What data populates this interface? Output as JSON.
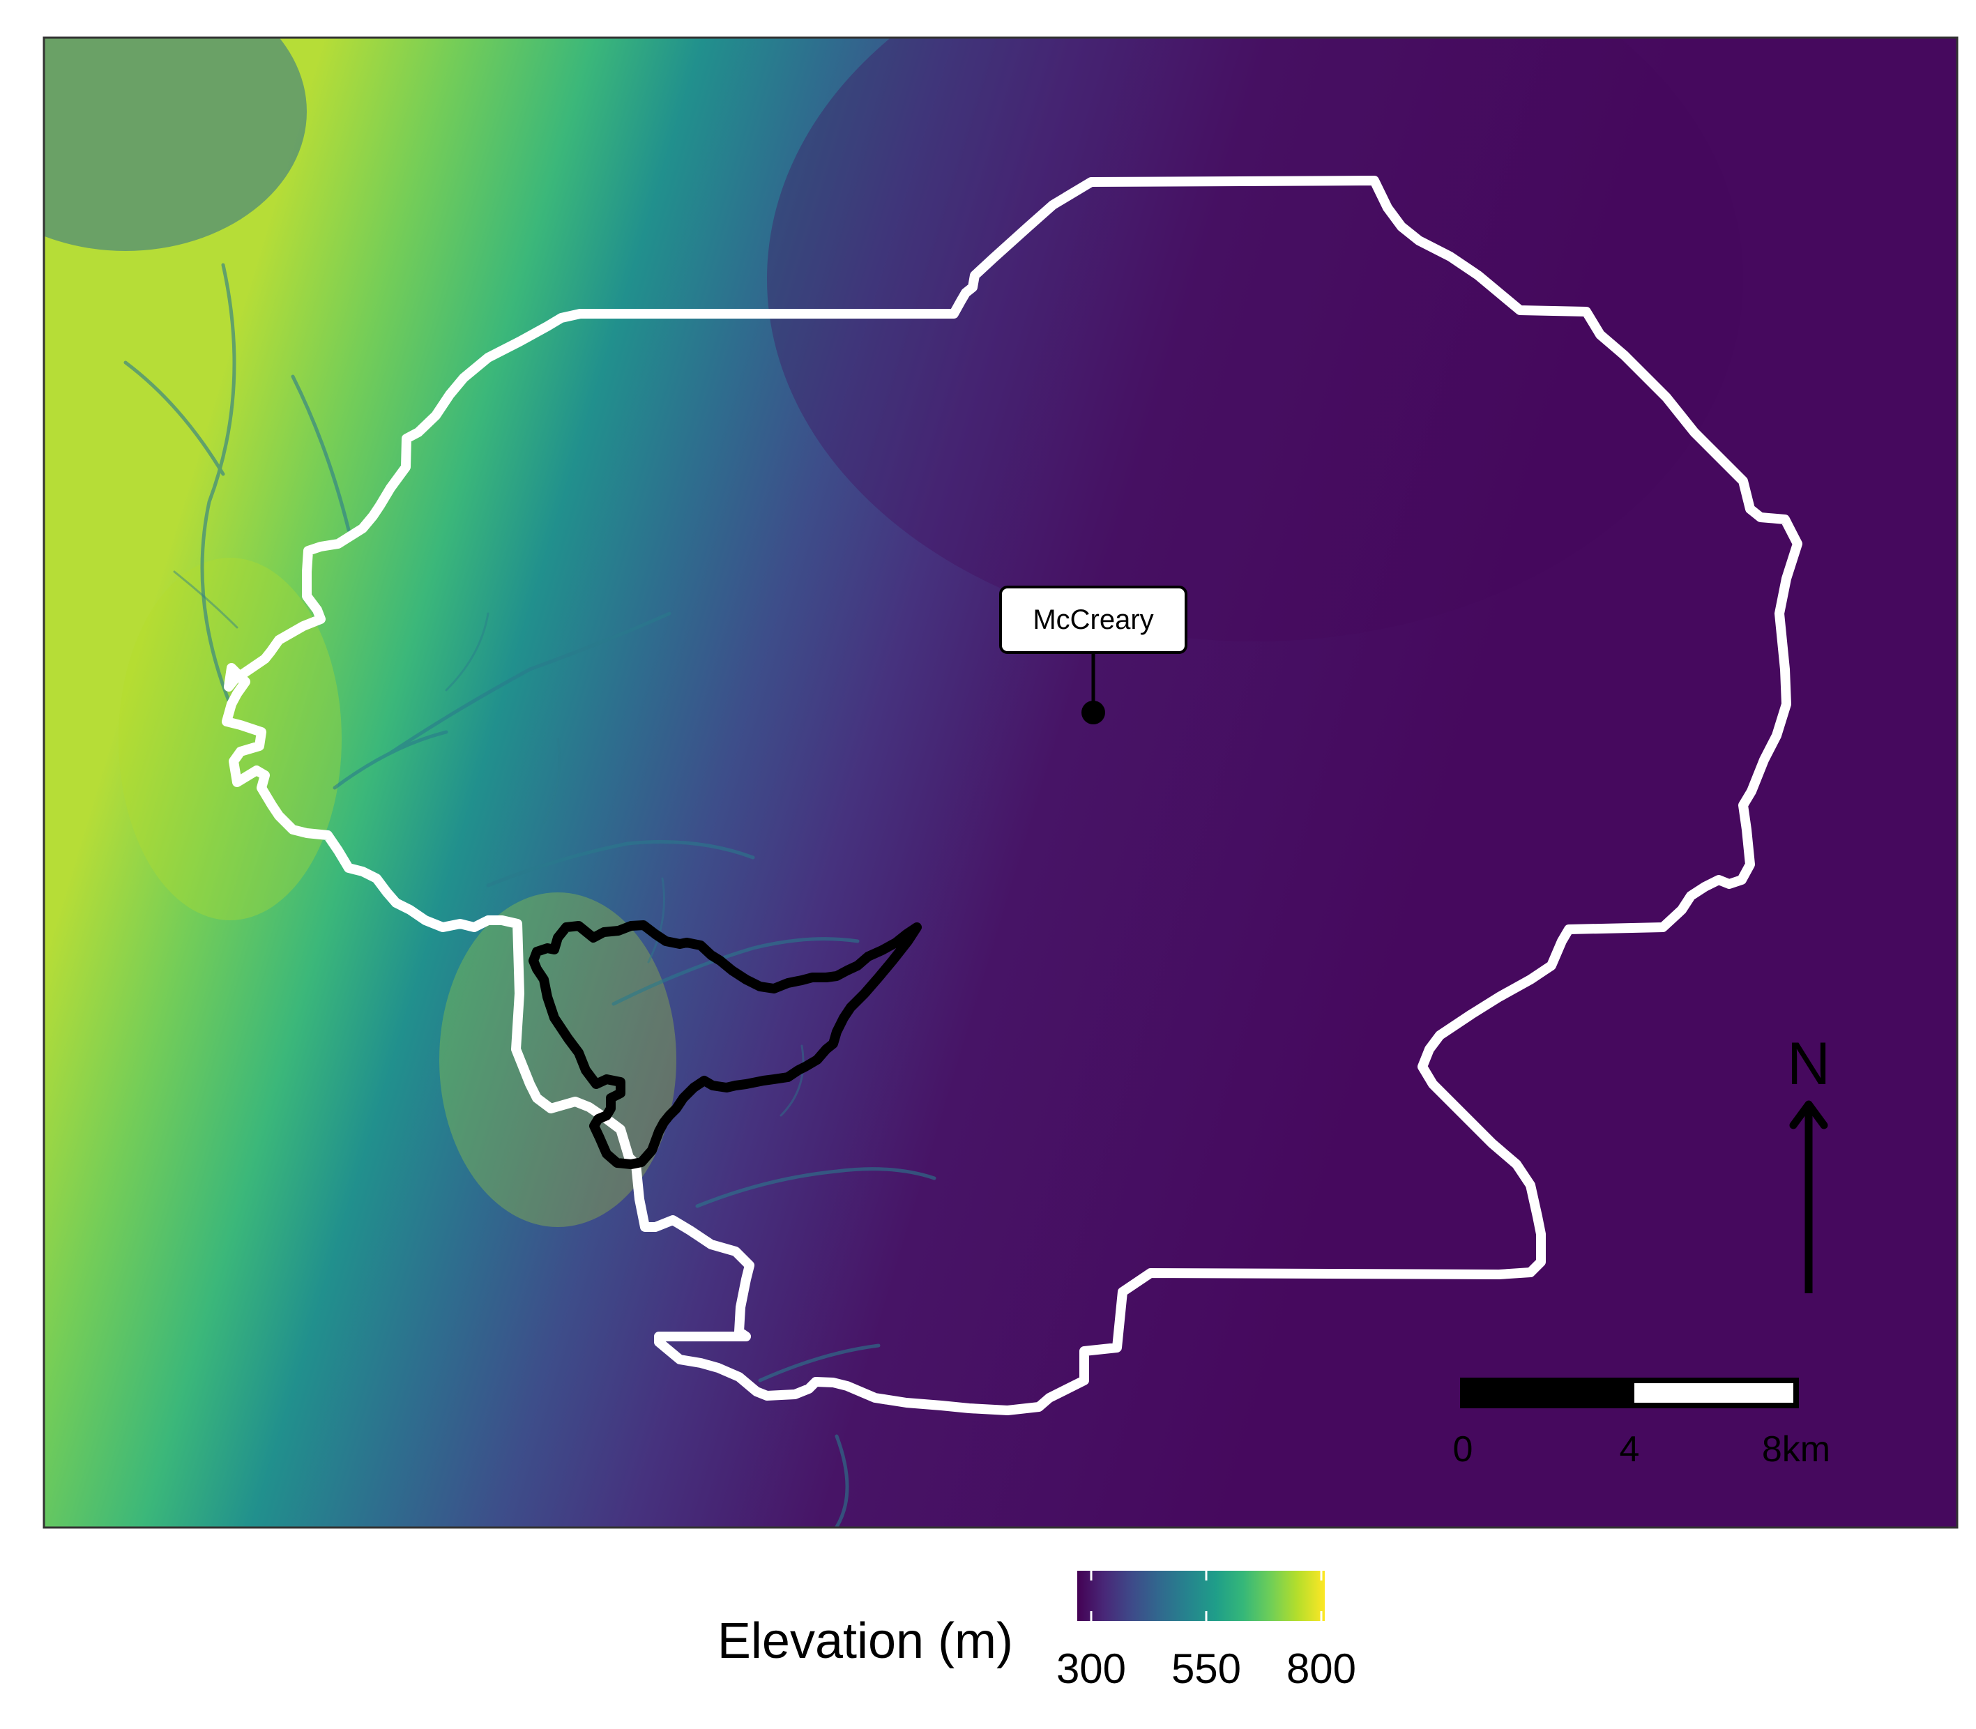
{
  "place_label": {
    "text": "McCreary"
  },
  "north_arrow": {
    "label": "N"
  },
  "scale_bar": {
    "tick_labels": [
      "0",
      "4",
      "8km"
    ],
    "segments": [
      "black",
      "white"
    ]
  },
  "legend": {
    "title": "Elevation (m)",
    "breaks": [
      "300",
      "550",
      "800"
    ],
    "palette": "viridis",
    "colors": [
      "#440154",
      "#482878",
      "#3e4a89",
      "#31688e",
      "#26828e",
      "#1f9e89",
      "#35b779",
      "#6ece58",
      "#b5de2b",
      "#fde725"
    ]
  },
  "layers": {
    "outer_boundary": {
      "stroke": "#ffffff"
    },
    "inner_watershed": {
      "stroke": "#000000"
    }
  }
}
